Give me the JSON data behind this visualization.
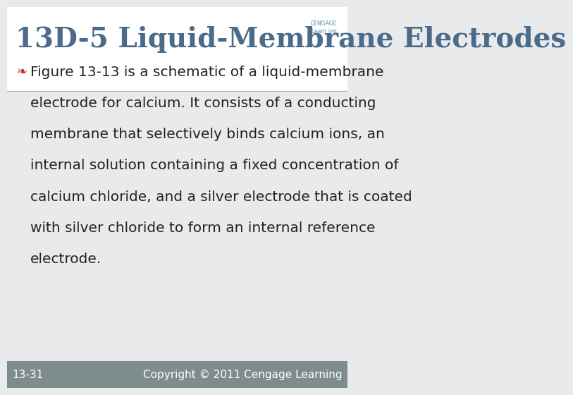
{
  "title": "13D-5 Liquid-Membrane Electrodes",
  "title_color": "#4a6b8a",
  "title_fontsize": 28,
  "title_font": "DejaVu Serif",
  "bg_color": "#e8eaec",
  "header_bg": "#ffffff",
  "header_line_color": "#aaaaaa",
  "bullet_lines": [
    "Figure 13-13 is a schematic of a liquid-membrane",
    "electrode for calcium. It consists of a conducting",
    "membrane that selectively binds calcium ions, an",
    "internal solution containing a fixed concentration of",
    "calcium chloride, and a silver electrode that is coated",
    "with silver chloride to form an internal reference",
    "electrode."
  ],
  "bullet_color": "#222222",
  "bullet_fontsize": 14.5,
  "bullet_symbol_color": "#c0392b",
  "footer_bg": "#7f8c8d",
  "footer_text_left": "13-31",
  "footer_text_right": "Copyright © 2011 Cengage Learning",
  "footer_color": "#ffffff",
  "footer_fontsize": 11
}
